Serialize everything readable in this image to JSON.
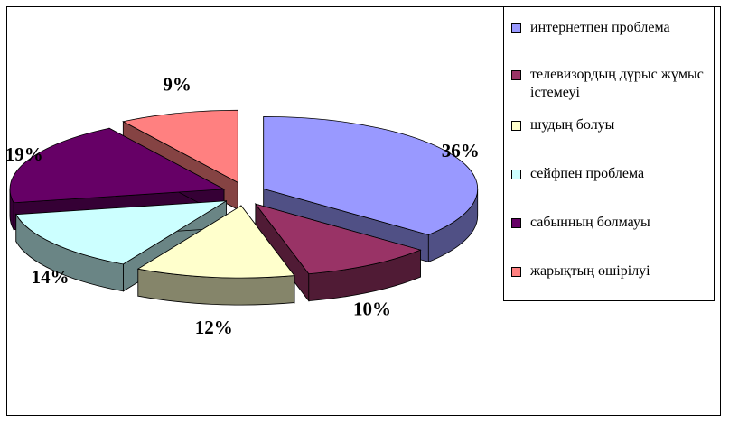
{
  "chart_data": {
    "type": "pie",
    "title": "",
    "three_d": true,
    "legend_position": "right",
    "categories": [
      "  интернетпен  проблема",
      "телевизордың дұрыс жұмыс істемеуі",
      "шудың болуы",
      "  сейфпен проблема",
      "  сабынның болмауы",
      "  жарықтың өшірілуі"
    ],
    "values": [
      36,
      10,
      12,
      14,
      19,
      9
    ],
    "value_labels": [
      "36%",
      "10%",
      "12%",
      "14%",
      "19%",
      "9%"
    ],
    "colors": [
      "#9999FF",
      "#993366",
      "#FFFFCC",
      "#CCFFFF",
      "#660066",
      "#FF8080"
    ]
  }
}
